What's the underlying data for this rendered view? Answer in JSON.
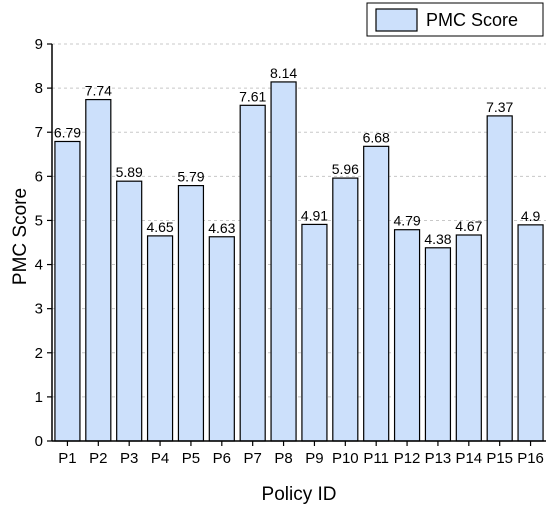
{
  "chart_data": {
    "type": "bar",
    "title": "",
    "xlabel": "Policy ID",
    "ylabel": "PMC Score",
    "categories": [
      "P1",
      "P2",
      "P3",
      "P4",
      "P5",
      "P6",
      "P7",
      "P8",
      "P9",
      "P10",
      "P11",
      "P12",
      "P13",
      "P14",
      "P15",
      "P16"
    ],
    "series": [
      {
        "name": "PMC Score",
        "values": [
          6.79,
          7.74,
          5.89,
          4.65,
          5.79,
          4.63,
          7.61,
          8.14,
          4.91,
          5.96,
          6.68,
          4.79,
          4.38,
          4.67,
          7.37,
          4.9
        ]
      }
    ],
    "data_labels": [
      "6.79",
      "7.74",
      "5.89",
      "4.65",
      "5.79",
      "4.63",
      "7.61",
      "8.14",
      "4.91",
      "5.96",
      "6.68",
      "4.79",
      "4.38",
      "4.67",
      "7.37",
      "4.9"
    ],
    "ylim": [
      0,
      9
    ],
    "yticks": [
      0,
      1,
      2,
      3,
      4,
      5,
      6,
      7,
      8,
      9
    ],
    "grid": "horizontal-dashed",
    "legend_position": "top-right",
    "colors": {
      "bar_fill": "#cce0fb",
      "bar_stroke": "#000000",
      "grid": "#c8c8c8"
    }
  }
}
